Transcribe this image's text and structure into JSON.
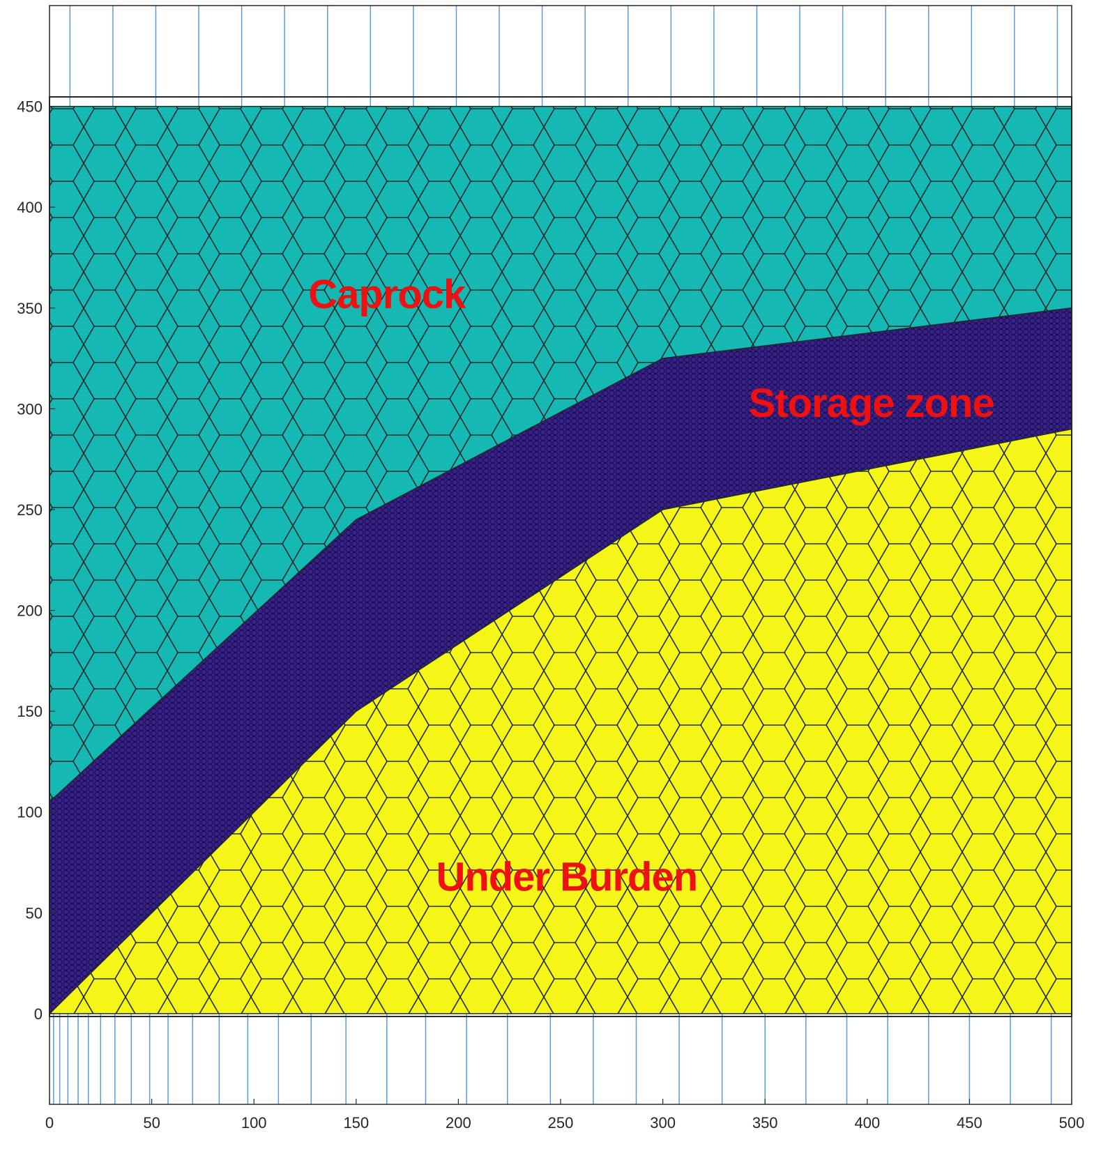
{
  "chart_data": {
    "type": "mesh",
    "xlim": [
      0,
      500
    ],
    "ylim": [
      -45,
      500
    ],
    "x_ticks": [
      "0",
      "50",
      "100",
      "150",
      "200",
      "250",
      "300",
      "350",
      "400",
      "450",
      "500"
    ],
    "y_ticks": [
      "0",
      "50",
      "100",
      "150",
      "200",
      "250",
      "300",
      "350",
      "400",
      "450"
    ],
    "grid": "off",
    "domain": {
      "x": [
        0,
        500
      ],
      "y": [
        0,
        450
      ]
    },
    "regions": [
      {
        "name": "Caprock",
        "color": "#15b8b3",
        "polygon": [
          [
            0,
            450
          ],
          [
            500,
            450
          ],
          [
            500,
            350
          ],
          [
            300,
            325
          ],
          [
            150,
            245
          ],
          [
            0,
            105
          ]
        ]
      },
      {
        "name": "Storage zone",
        "color": "#3a1f8f",
        "polygon": [
          [
            0,
            105
          ],
          [
            150,
            245
          ],
          [
            300,
            325
          ],
          [
            500,
            350
          ],
          [
            500,
            290
          ],
          [
            300,
            250
          ],
          [
            150,
            150
          ],
          [
            0,
            0
          ]
        ]
      },
      {
        "name": "Under Burden",
        "color": "#f5f517",
        "polygon": [
          [
            0,
            0
          ],
          [
            150,
            150
          ],
          [
            300,
            250
          ],
          [
            500,
            290
          ],
          [
            500,
            0
          ]
        ]
      }
    ],
    "annotations": [
      {
        "text": "Caprock",
        "x": 165,
        "y": 350
      },
      {
        "text": "Storage zone",
        "x": 402,
        "y": 296
      },
      {
        "text": "Under Burden",
        "x": 253,
        "y": 61
      }
    ],
    "vertical_lines_top_x": [
      10,
      31,
      52,
      73,
      94,
      115,
      136,
      157,
      178,
      199,
      220,
      241,
      262,
      283,
      304,
      325,
      346,
      367,
      388,
      409,
      430,
      451,
      472,
      493
    ],
    "vertical_lines_bottom_x": [
      2,
      5,
      9,
      14,
      19,
      25,
      32,
      40,
      49,
      58,
      70,
      83,
      97,
      112,
      128,
      145,
      165,
      184,
      204,
      224,
      245,
      266,
      287,
      308,
      329,
      350,
      370,
      390,
      410,
      430,
      450,
      470,
      490
    ],
    "line_color": "#5b9bd5",
    "mesh_edge_color": "#1f2a2a"
  }
}
